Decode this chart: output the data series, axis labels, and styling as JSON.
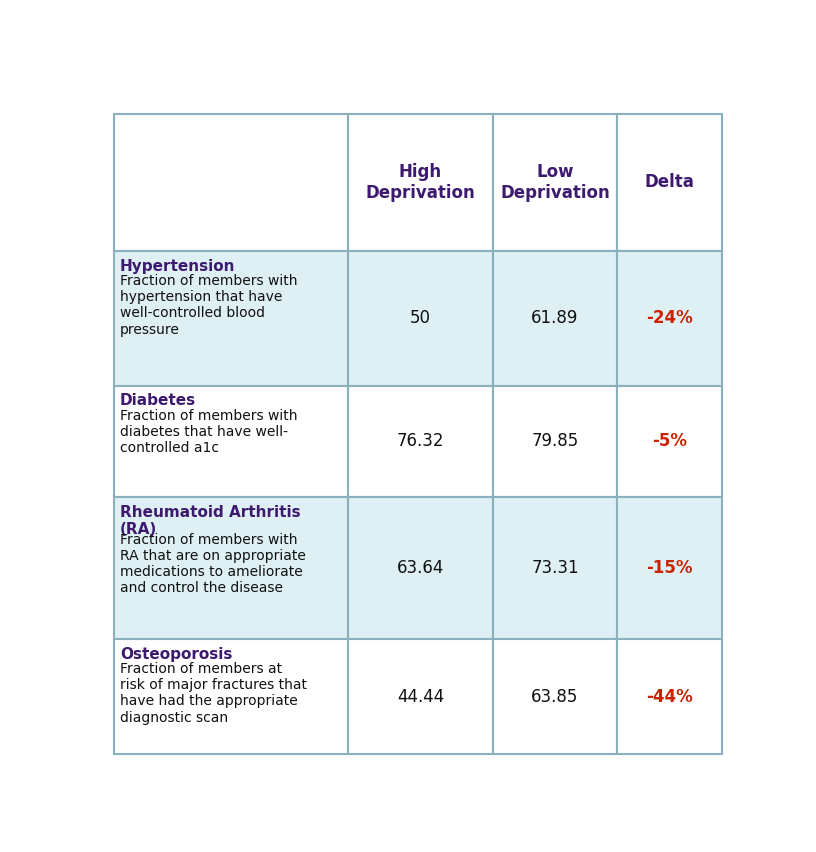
{
  "col_headers": [
    "High\nDeprivation",
    "Low\nDeprivation",
    "Delta"
  ],
  "rows": [
    {
      "title": "Hypertension",
      "description": "Fraction of members with\nhypertension that have\nwell-controlled blood\npressure",
      "high_dep": "50",
      "low_dep": "61.89",
      "delta": "-24%",
      "bg_color": "#dff0f4"
    },
    {
      "title": "Diabetes",
      "description": "Fraction of members with\ndiabetes that have well-\ncontrolled a1c",
      "high_dep": "76.32",
      "low_dep": "79.85",
      "delta": "-5%",
      "bg_color": "#ffffff"
    },
    {
      "title": "Rheumatoid Arthritis\n(RA)",
      "description": "Fraction of members with\nRA that are on appropriate\nmedications to ameliorate\nand control the disease",
      "high_dep": "63.64",
      "low_dep": "73.31",
      "delta": "-15%",
      "bg_color": "#dff0f4"
    },
    {
      "title": "Osteoporosis",
      "description": "Fraction of members at\nrisk of major fractures that\nhave had the appropriate\ndiagnostic scan",
      "high_dep": "44.44",
      "low_dep": "63.85",
      "delta": "-44%",
      "bg_color": "#ffffff"
    }
  ],
  "header_bg": "#ffffff",
  "header_text_color": "#3d1a6e",
  "title_color": "#3d1a6e",
  "desc_color": "#111111",
  "value_color": "#111111",
  "delta_color": "#cc2200",
  "border_color": "#8ab0c0",
  "fig_bg": "#ffffff",
  "title_fontsize": 11,
  "desc_fontsize": 10,
  "header_fontsize": 12,
  "value_fontsize": 12,
  "delta_fontsize": 12
}
